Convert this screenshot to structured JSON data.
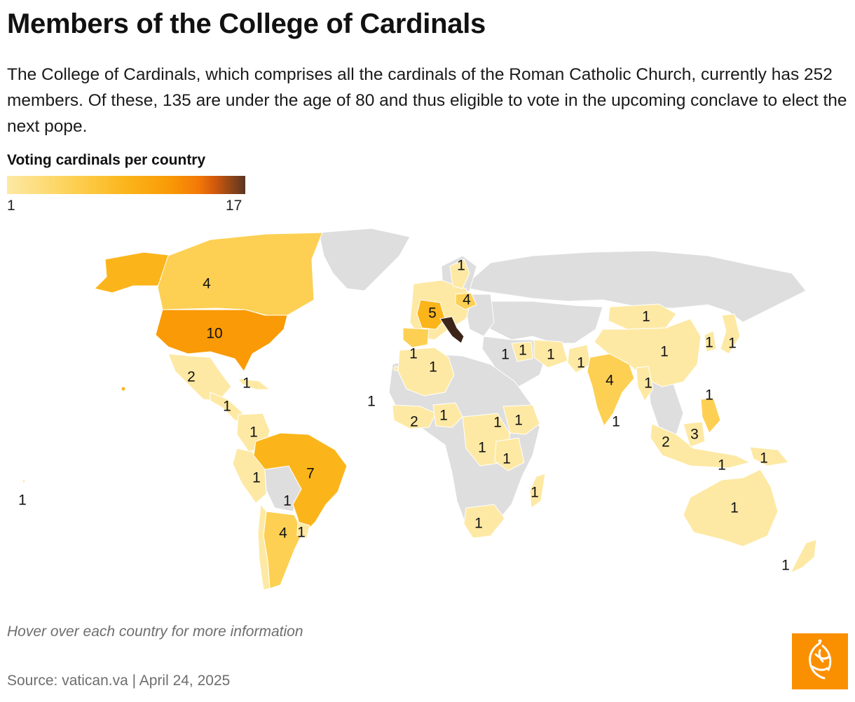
{
  "title": "Members of the College of Cardinals",
  "subtitle": "The College of Cardinals, which comprises all the cardinals of the Roman Catholic Church, currently has 252 members. Of these, 135 are under the age of 80 and thus eligible to vote in the upcoming conclave to elect the next pope.",
  "legend": {
    "title": "Voting cardinals per country",
    "min": "1",
    "max": "17",
    "colors": [
      "#fde9a4",
      "#fdd053",
      "#fbb51b",
      "#f99a06",
      "#f47a07",
      "#5a3523"
    ]
  },
  "map_labels": [
    "4",
    "10",
    "2",
    "1",
    "1",
    "1",
    "1",
    "7",
    "1",
    "1",
    "4",
    "1",
    "1",
    "1",
    "5",
    "4",
    "1",
    "1",
    "1",
    "2",
    "1",
    "1",
    "1",
    "1",
    "1",
    "1",
    "1",
    "1",
    "1",
    "1",
    "1",
    "1",
    "4",
    "1",
    "1",
    "1",
    "1",
    "1",
    "2",
    "3",
    "1",
    "1",
    "1",
    "1",
    "1",
    "1"
  ],
  "note": "Hover over each country for more information",
  "source": "Source: vatican.va | April 24, 2025",
  "colors": {
    "land_none": "#dedede",
    "tier1": "#fde9a4",
    "tier2": "#fdd053",
    "tier3": "#fbb51b",
    "tier4": "#f99a06",
    "tier_max": "#3d2418",
    "logo_bg": "#fa9000"
  }
}
